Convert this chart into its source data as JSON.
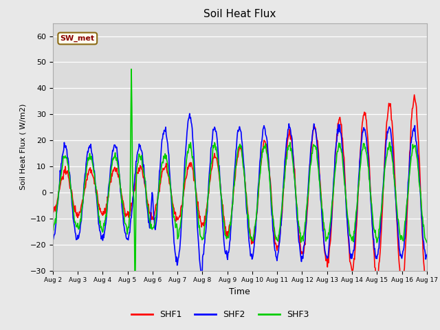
{
  "title": "Soil Heat Flux",
  "xlabel": "Time",
  "ylabel": "Soil Heat Flux ( W/m2)",
  "ylim": [
    -30,
    65
  ],
  "yticks": [
    -30,
    -20,
    -10,
    0,
    10,
    20,
    30,
    40,
    50,
    60
  ],
  "fig_bg_color": "#e8e8e8",
  "plot_bg_color": "#dcdcdc",
  "annotation_text": "SW_met",
  "annotation_bg": "#fffff0",
  "annotation_border": "#8b6914",
  "annotation_text_color": "#8b0000",
  "line_colors": {
    "SHF1": "#ff0000",
    "SHF2": "#0000ff",
    "SHF3": "#00cc00"
  },
  "line_width": 1.2,
  "xtick_labels": [
    "Aug 2",
    "Aug 3",
    "Aug 4",
    "Aug 5",
    "Aug 6",
    "Aug 7",
    "Aug 8",
    "Aug 9",
    "Aug 10",
    "Aug 11",
    "Aug 12",
    "Aug 13",
    "Aug 14",
    "Aug 15",
    "Aug 16",
    "Aug 17"
  ],
  "legend_labels": [
    "SHF1",
    "SHF2",
    "SHF3"
  ]
}
